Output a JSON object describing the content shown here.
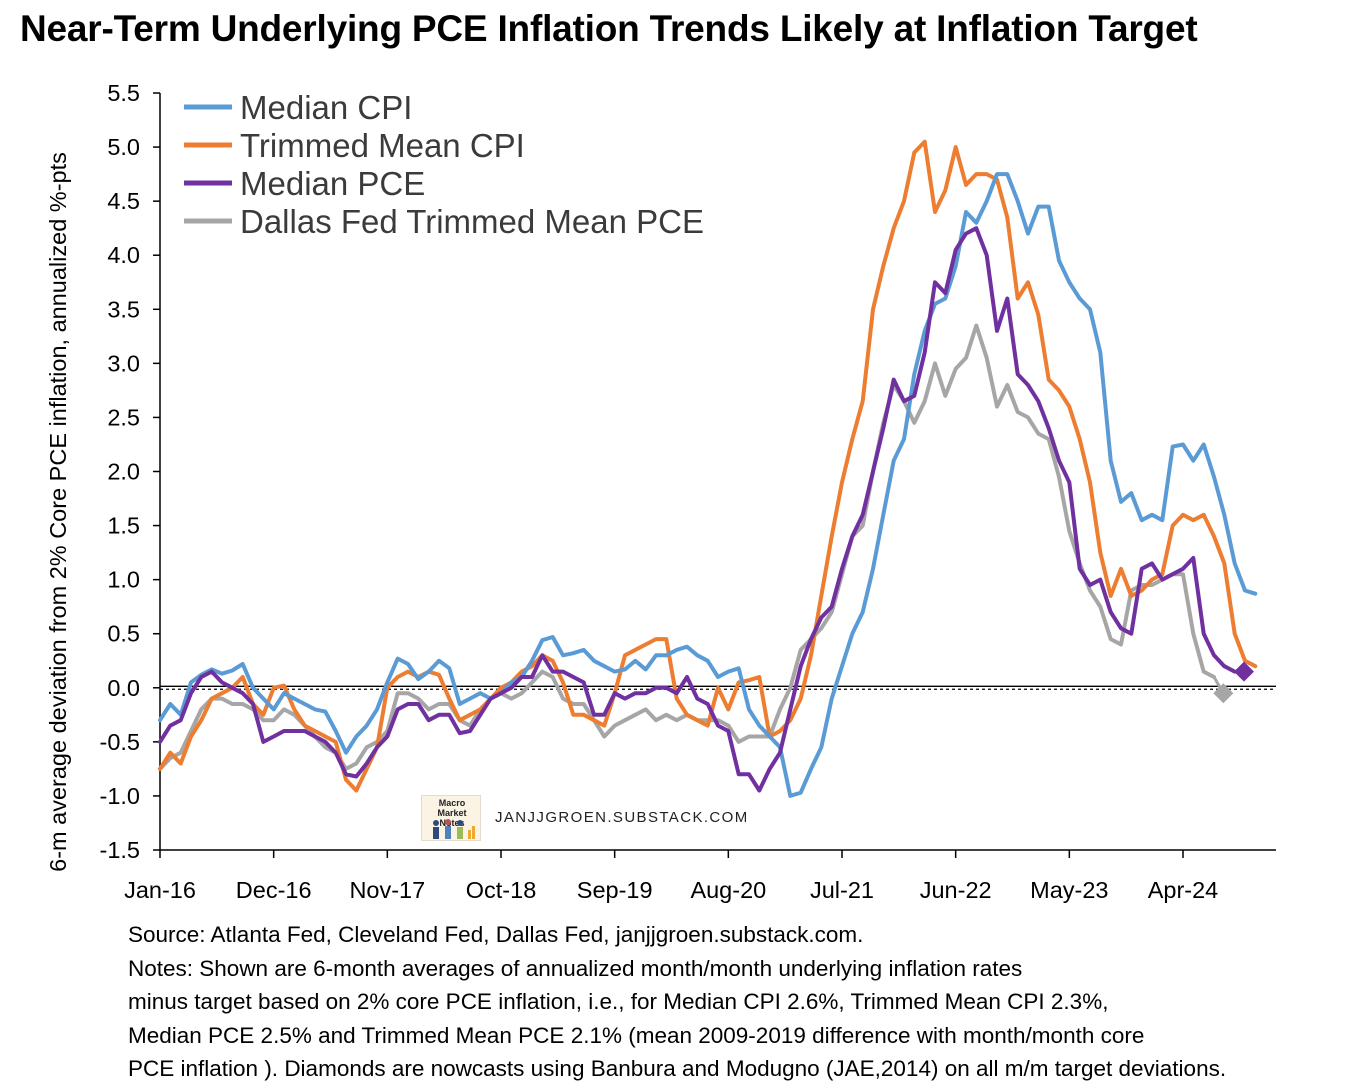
{
  "title": "Near-Term Underlying PCE Inflation Trends Likely at Inflation Target",
  "watermark": {
    "logo_text": "Macro Market Notes",
    "site": "JANJJGROEN.SUBSTACK.COM"
  },
  "notes": [
    "Source: Atlanta Fed, Cleveland Fed, Dallas Fed, janjjgroen.substack.com.",
    "Notes: Shown are 6-month averages of annualized month/month underlying inflation rates",
    "minus target based on 2% core PCE inflation, i.e., for Median CPI 2.6%, Trimmed Mean CPI 2.3%,",
    "Median PCE 2.5% and Trimmed Mean PCE 2.1% (mean 2009-2019 difference with month/month core",
    "PCE inflation ). Diamonds are nowcasts using Banbura and Modugno (JAE,2014) on all m/m target deviations."
  ],
  "chart_data": {
    "type": "line",
    "ylabel": "6-m average deviation from 2% Core PCE inflation, annualized %-pts",
    "xlabel": "",
    "ylim": [
      -1.5,
      5.5
    ],
    "yticks": [
      "5.5",
      "5.0",
      "4.5",
      "4.0",
      "3.5",
      "3.0",
      "2.5",
      "2.0",
      "1.5",
      "1.0",
      "0.5",
      "0.0",
      "-0.5",
      "-1.0",
      "-1.5"
    ],
    "x_start": "Jan-16",
    "x_tick_labels": [
      "Jan-16",
      "Dec-16",
      "Nov-17",
      "Oct-18",
      "Sep-19",
      "Aug-20",
      "Jul-21",
      "Jun-22",
      "May-23",
      "Apr-24"
    ],
    "x_tick_month_index": [
      0,
      11,
      22,
      33,
      44,
      55,
      66,
      77,
      88,
      99
    ],
    "legend_position": "top-left",
    "reference_line": 0,
    "colors": {
      "median_cpi": "#5b9bd5",
      "trimmed_mean_cpi": "#ed7d31",
      "median_pce": "#7030a0",
      "dallas_fed_trimmed_mean_pce": "#a6a6a6"
    },
    "series": [
      {
        "name": "Median CPI",
        "color": "#5b9bd5",
        "values": [
          -0.3,
          -0.15,
          -0.25,
          0.05,
          0.12,
          0.17,
          0.13,
          0.16,
          0.22,
          0.0,
          -0.1,
          -0.2,
          -0.05,
          -0.1,
          -0.15,
          -0.2,
          -0.22,
          -0.4,
          -0.6,
          -0.45,
          -0.35,
          -0.2,
          0.05,
          0.27,
          0.22,
          0.08,
          0.15,
          0.25,
          0.18,
          -0.15,
          -0.1,
          -0.05,
          -0.1,
          -0.05,
          0.05,
          0.1,
          0.25,
          0.44,
          0.47,
          0.3,
          0.32,
          0.35,
          0.25,
          0.2,
          0.15,
          0.17,
          0.25,
          0.17,
          0.3,
          0.3,
          0.35,
          0.38,
          0.3,
          0.25,
          0.1,
          0.15,
          0.18,
          -0.2,
          -0.35,
          -0.45,
          -0.55,
          -1.0,
          -0.97,
          -0.75,
          -0.55,
          -0.1,
          0.2,
          0.5,
          0.7,
          1.1,
          1.6,
          2.1,
          2.3,
          2.9,
          3.3,
          3.55,
          3.6,
          3.9,
          4.4,
          4.3,
          4.5,
          4.75,
          4.75,
          4.5,
          4.2,
          4.45,
          4.45,
          3.95,
          3.75,
          3.6,
          3.5,
          3.1,
          2.1,
          1.72,
          1.8,
          1.55,
          1.6,
          1.55,
          2.23,
          2.25,
          2.1,
          2.25,
          1.95,
          1.6,
          1.15,
          0.9,
          0.87
        ],
        "nowcast": null
      },
      {
        "name": "Trimmed Mean CPI",
        "color": "#ed7d31",
        "values": [
          -0.75,
          -0.6,
          -0.7,
          -0.45,
          -0.3,
          -0.1,
          -0.05,
          0.0,
          0.1,
          -0.15,
          -0.25,
          0.0,
          0.02,
          -0.2,
          -0.35,
          -0.4,
          -0.45,
          -0.5,
          -0.85,
          -0.95,
          -0.75,
          -0.55,
          0.0,
          0.1,
          0.15,
          0.1,
          0.15,
          0.12,
          -0.1,
          -0.3,
          -0.25,
          -0.2,
          -0.1,
          0.0,
          0.05,
          0.15,
          0.2,
          0.3,
          0.25,
          0.05,
          -0.25,
          -0.25,
          -0.3,
          -0.35,
          -0.05,
          0.3,
          0.35,
          0.4,
          0.45,
          0.45,
          -0.1,
          -0.25,
          -0.3,
          -0.35,
          0.0,
          -0.2,
          0.05,
          0.07,
          0.1,
          -0.45,
          -0.4,
          -0.3,
          -0.1,
          0.3,
          0.85,
          1.4,
          1.9,
          2.3,
          2.65,
          3.5,
          3.9,
          4.25,
          4.5,
          4.95,
          5.05,
          4.4,
          4.6,
          5.0,
          4.65,
          4.75,
          4.75,
          4.7,
          4.35,
          3.6,
          3.75,
          3.45,
          2.85,
          2.75,
          2.6,
          2.3,
          1.9,
          1.25,
          0.85,
          1.1,
          0.85,
          0.9,
          1.0,
          1.05,
          1.5,
          1.6,
          1.55,
          1.6,
          1.4,
          1.15,
          0.5,
          0.25,
          0.2
        ],
        "nowcast": null
      },
      {
        "name": "Median PCE",
        "color": "#7030a0",
        "values": [
          -0.5,
          -0.35,
          -0.3,
          -0.05,
          0.1,
          0.15,
          0.05,
          0.0,
          -0.05,
          -0.15,
          -0.5,
          -0.45,
          -0.4,
          -0.4,
          -0.4,
          -0.45,
          -0.5,
          -0.6,
          -0.8,
          -0.82,
          -0.7,
          -0.55,
          -0.45,
          -0.2,
          -0.15,
          -0.15,
          -0.3,
          -0.25,
          -0.25,
          -0.42,
          -0.4,
          -0.25,
          -0.1,
          -0.05,
          0.0,
          0.1,
          0.1,
          0.3,
          0.15,
          0.15,
          0.1,
          0.05,
          -0.25,
          -0.25,
          -0.05,
          -0.1,
          -0.05,
          -0.05,
          0.0,
          0.0,
          -0.05,
          0.1,
          -0.1,
          -0.15,
          -0.35,
          -0.4,
          -0.8,
          -0.8,
          -0.95,
          -0.75,
          -0.6,
          -0.2,
          0.2,
          0.45,
          0.65,
          0.75,
          1.1,
          1.4,
          1.6,
          2.0,
          2.4,
          2.85,
          2.65,
          2.7,
          3.1,
          3.75,
          3.65,
          4.05,
          4.2,
          4.25,
          4.0,
          3.3,
          3.6,
          2.9,
          2.8,
          2.65,
          2.4,
          2.1,
          1.9,
          1.1,
          0.95,
          1.0,
          0.7,
          0.55,
          0.5,
          1.1,
          1.15,
          1.0,
          1.05,
          1.1,
          1.2,
          0.5,
          0.3,
          0.2,
          0.15
        ],
        "nowcast": 0.15
      },
      {
        "name": "Dallas Fed Trimmed Mean PCE",
        "color": "#a6a6a6",
        "values": [
          -0.75,
          -0.65,
          -0.6,
          -0.4,
          -0.2,
          -0.1,
          -0.1,
          -0.15,
          -0.15,
          -0.2,
          -0.3,
          -0.3,
          -0.2,
          -0.25,
          -0.35,
          -0.45,
          -0.55,
          -0.6,
          -0.75,
          -0.7,
          -0.55,
          -0.5,
          -0.4,
          -0.05,
          -0.05,
          -0.1,
          -0.2,
          -0.15,
          -0.15,
          -0.3,
          -0.35,
          -0.2,
          -0.1,
          -0.05,
          -0.1,
          -0.05,
          0.05,
          0.15,
          0.1,
          -0.1,
          -0.15,
          -0.15,
          -0.3,
          -0.45,
          -0.35,
          -0.3,
          -0.25,
          -0.2,
          -0.3,
          -0.25,
          -0.3,
          -0.25,
          -0.3,
          -0.3,
          -0.3,
          -0.35,
          -0.5,
          -0.45,
          -0.45,
          -0.45,
          -0.2,
          0.0,
          0.35,
          0.45,
          0.55,
          0.7,
          1.05,
          1.4,
          1.5,
          2.0,
          2.45,
          2.8,
          2.65,
          2.45,
          2.65,
          3.0,
          2.7,
          2.95,
          3.05,
          3.35,
          3.05,
          2.6,
          2.8,
          2.55,
          2.5,
          2.35,
          2.3,
          1.95,
          1.45,
          1.15,
          0.9,
          0.75,
          0.45,
          0.4,
          0.9,
          0.95,
          0.95,
          1.0,
          1.05,
          1.05,
          0.5,
          0.15,
          0.1
        ],
        "nowcast": -0.05
      }
    ]
  }
}
